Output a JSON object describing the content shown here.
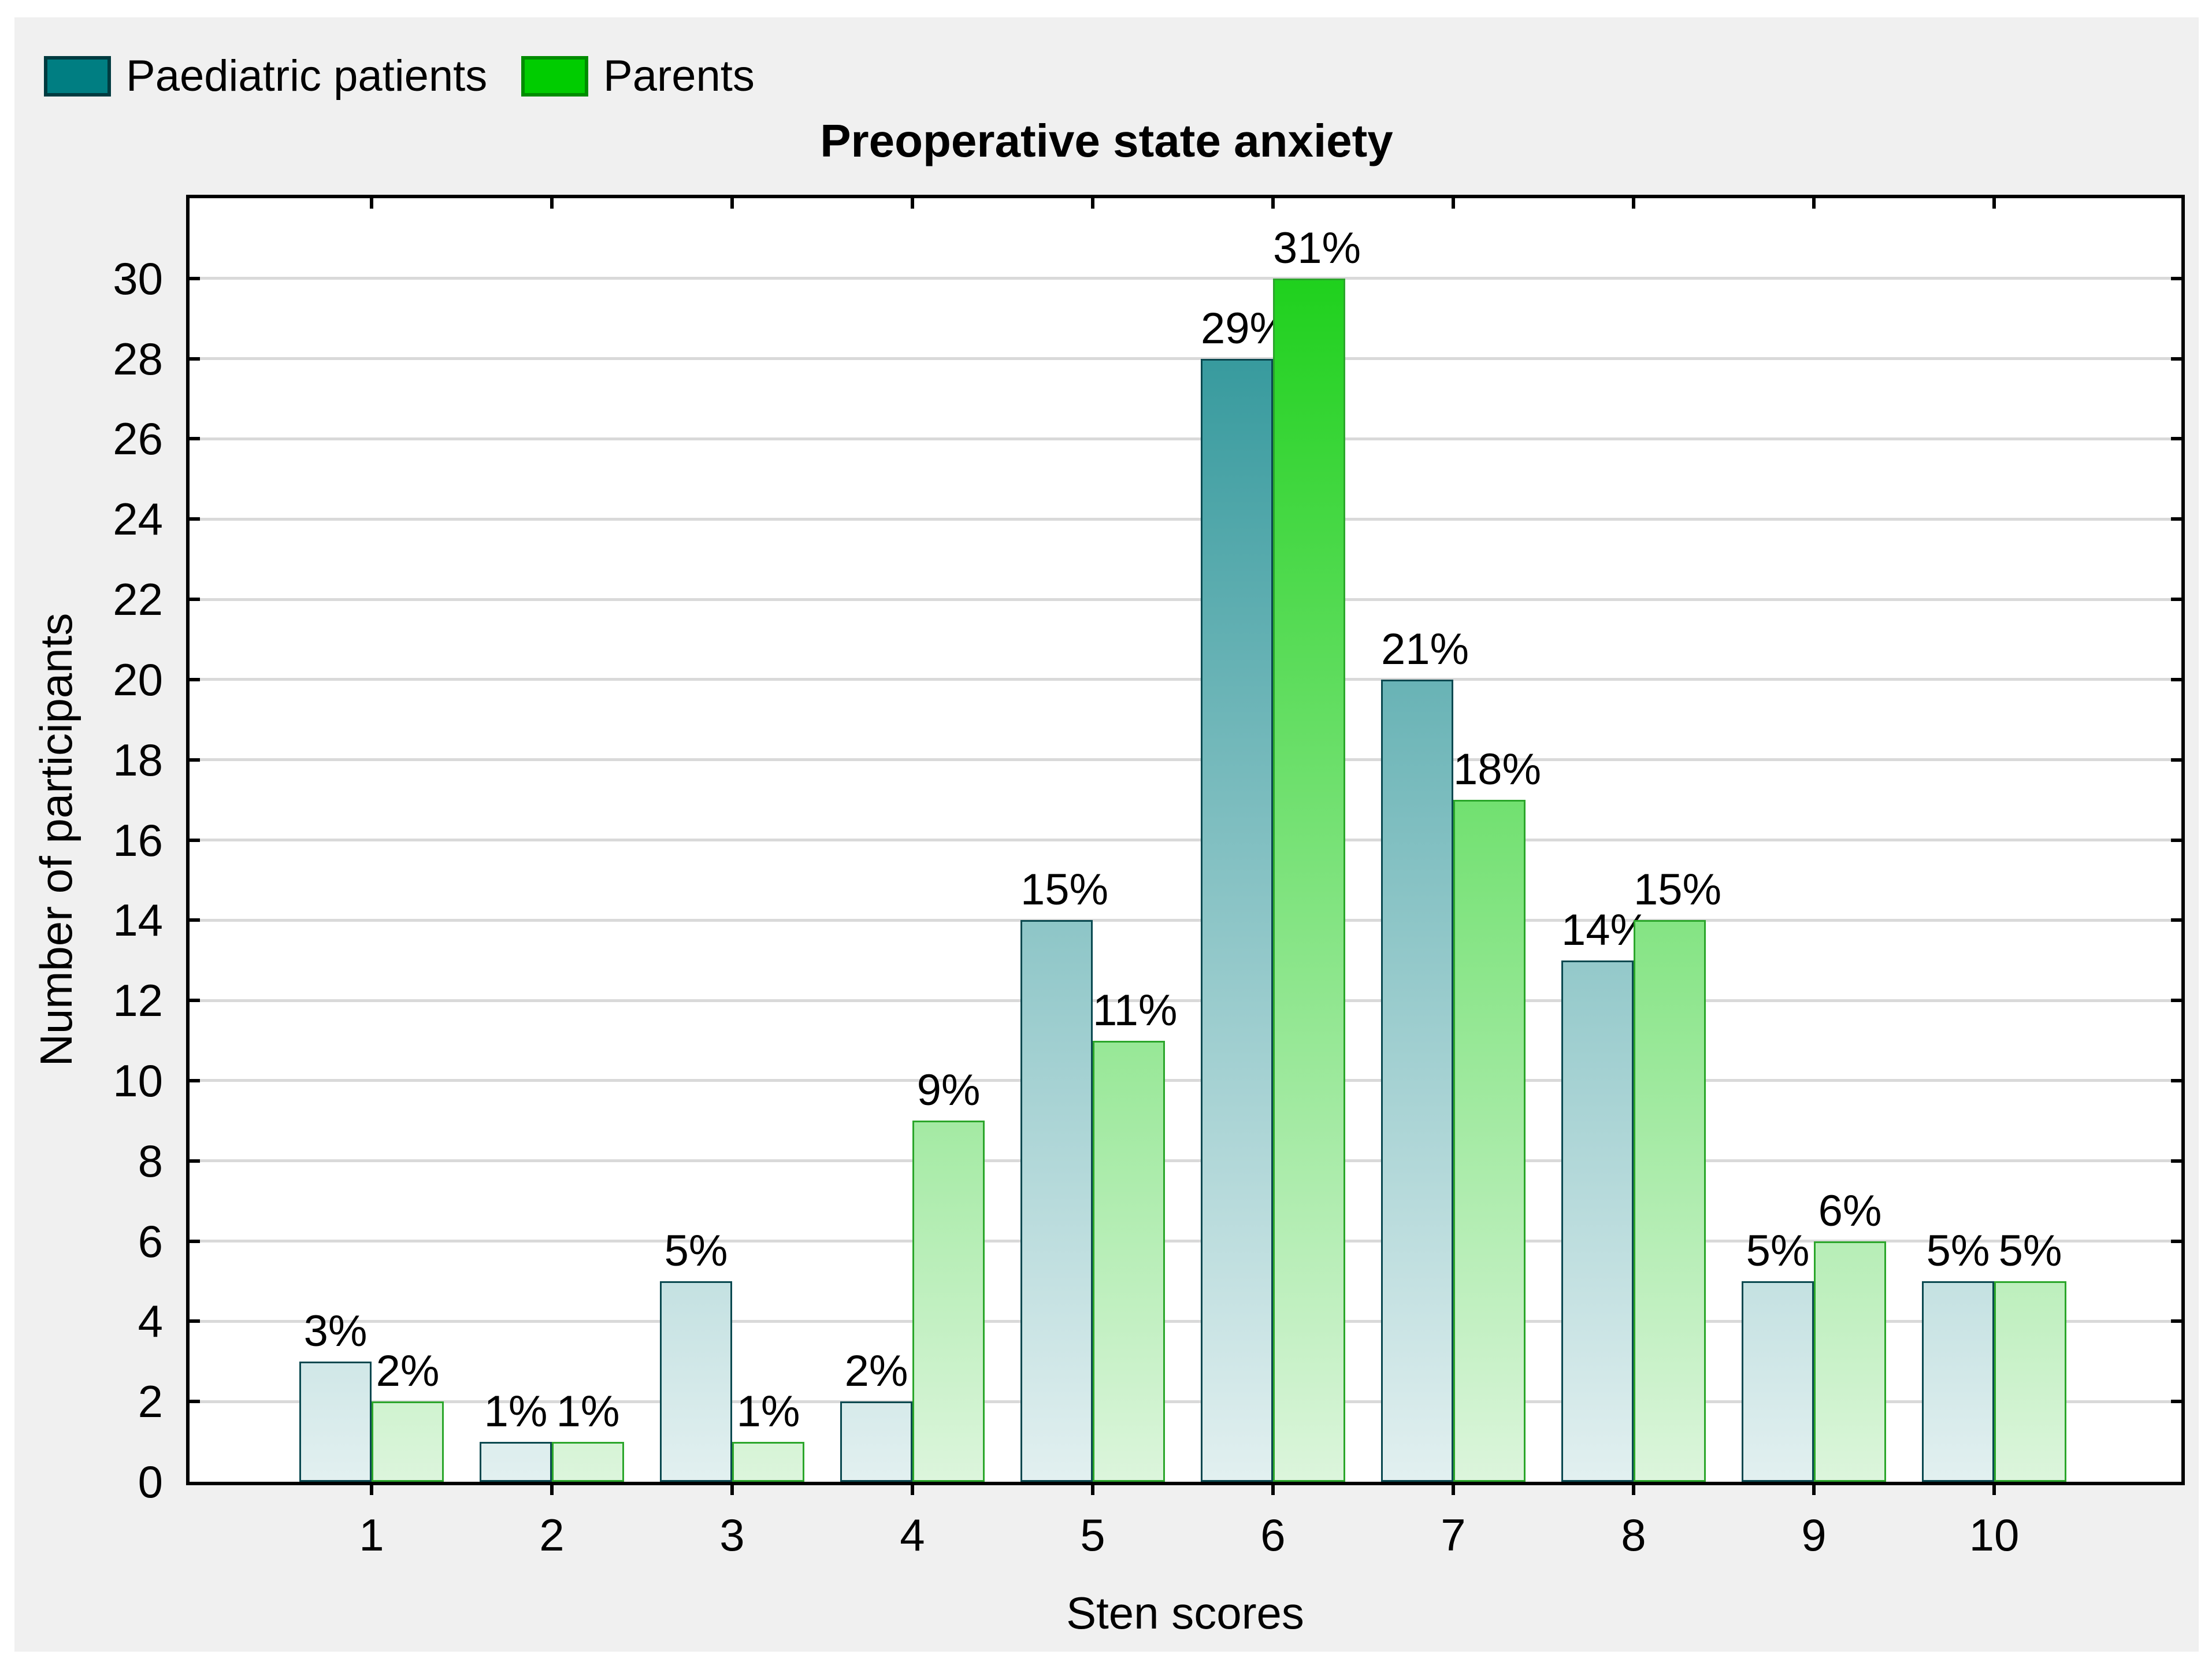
{
  "page": {
    "background": "#ffffff",
    "panel_background": "#f0f0f0"
  },
  "legend": {
    "position": "top-left",
    "items": [
      {
        "label": "Paediatric patients",
        "swatch_color": "#007E82",
        "swatch_border": "#003B40"
      },
      {
        "label": "Parents",
        "swatch_color": "#00CC00",
        "swatch_border": "#008C00"
      }
    ]
  },
  "chart_data": {
    "type": "bar",
    "title": "Preoperative state anxiety",
    "xlabel": "Sten scores",
    "ylabel": "Number of participants",
    "categories": [
      "1",
      "2",
      "3",
      "4",
      "5",
      "6",
      "7",
      "8",
      "9",
      "10"
    ],
    "series": [
      {
        "name": "Paediatric patients",
        "values": [
          3,
          1,
          5,
          2,
          14,
          28,
          20,
          13,
          5,
          5
        ],
        "labels": [
          "3%",
          "1%",
          "5%",
          "2%",
          "15%",
          "29%",
          "21%",
          "14%",
          "5%",
          "5%"
        ],
        "gradient_top": "#1F8E92",
        "gradient_bottom": "#E2F0F0",
        "bar_border": "#0A4950"
      },
      {
        "name": "Parents",
        "values": [
          2,
          1,
          1,
          9,
          11,
          30,
          17,
          14,
          6,
          5
        ],
        "labels": [
          "2%",
          "1%",
          "1%",
          "9%",
          "11%",
          "31%",
          "18%",
          "15%",
          "6%",
          "5%"
        ],
        "gradient_top": "#12CE10",
        "gradient_bottom": "#DCF5DC",
        "bar_border": "#2BA62B"
      }
    ],
    "ylim": [
      0,
      32
    ],
    "yticks": [
      0,
      2,
      4,
      6,
      8,
      10,
      12,
      14,
      16,
      18,
      20,
      22,
      24,
      26,
      28,
      30
    ],
    "grid": "horizontal",
    "gridline_color": "#D9D9D9",
    "axis_color": "#000000",
    "plot_background": "#ffffff"
  }
}
